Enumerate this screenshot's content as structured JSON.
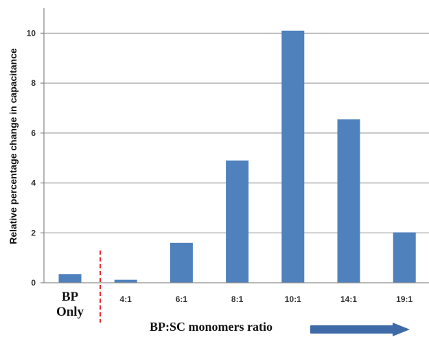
{
  "chart_data": {
    "type": "bar",
    "categories": [
      "BP Only",
      "4:1",
      "6:1",
      "8:1",
      "10:1",
      "14:1",
      "19:1"
    ],
    "category_lines": [
      [
        "BP",
        "Only"
      ],
      [
        "4:1"
      ],
      [
        "6:1"
      ],
      [
        "8:1"
      ],
      [
        "10:1"
      ],
      [
        "14:1"
      ],
      [
        "19:1"
      ]
    ],
    "values": [
      0.35,
      0.12,
      1.6,
      4.9,
      10.1,
      6.55,
      2.02
    ],
    "title": "",
    "xlabel": "BP:SC monomers  ratio",
    "ylabel": "Relative percentage change  in capacitance",
    "ylim": [
      0,
      11
    ],
    "yticks": [
      0,
      2,
      4,
      6,
      8,
      10
    ],
    "grid": true,
    "legend": "none",
    "bar_color": "#4f81bd",
    "grid_color": "#a6a6a6",
    "divider_color": "#e8282f",
    "arrow_color": "#3e6aa8"
  }
}
